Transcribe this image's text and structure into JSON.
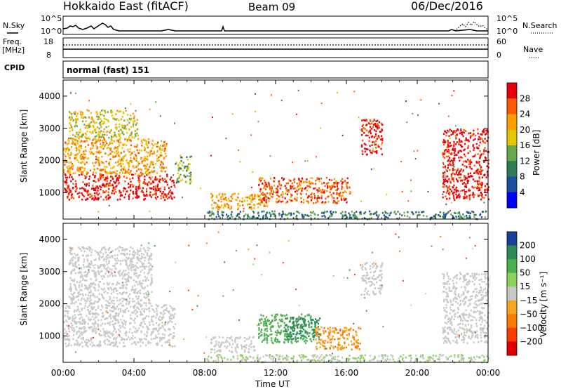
{
  "header": {
    "station": "Hokkaido East (fitACF)",
    "beam": "Beam 09",
    "date": "06/Dec/2016"
  },
  "noise_panel": {
    "left_label": "N.Sky",
    "left_ticks": [
      "10^5",
      "10^0"
    ],
    "right_ticks": [
      "10^5",
      "10^0"
    ],
    "right_label": "N.Search"
  },
  "freq_panel": {
    "left_label_1": "Freq.",
    "left_label_2": "[MHz]",
    "left_ticks": [
      "18",
      "8"
    ],
    "right_ticks": [
      "60",
      "0"
    ],
    "right_label": "Nave"
  },
  "cpid_panel": {
    "label": "CPID",
    "value": "normal (fast) 151"
  },
  "chart_data": [
    {
      "type": "heatmap",
      "name": "power",
      "ylabel": "Slant Range [km]",
      "yticks": [
        "4000",
        "3000",
        "2000",
        "1000"
      ],
      "ylim": [
        180,
        4500
      ],
      "colorbar_label": "Power [dB]",
      "colorbar_ticks": [
        "28",
        "24",
        "20",
        "16",
        "12",
        "8",
        "4"
      ],
      "colorbar_colors": [
        "#e8000b",
        "#ff5a00",
        "#ff9e00",
        "#e6c800",
        "#6aa84f",
        "#2e7d57",
        "#1c4fa0",
        "#0000ff"
      ],
      "regions": [
        {
          "t0": 0.0,
          "t1": 6.3,
          "r0": 800,
          "r1": 1600,
          "level": 28
        },
        {
          "t0": 0.0,
          "t1": 5.8,
          "r0": 1600,
          "r1": 2700,
          "level": 20
        },
        {
          "t0": 0.3,
          "t1": 4.2,
          "r0": 2700,
          "r1": 3600,
          "level": 16
        },
        {
          "t0": 6.3,
          "t1": 7.2,
          "r0": 1300,
          "r1": 2200,
          "level": 12
        },
        {
          "t0": 8.3,
          "t1": 11.5,
          "r0": 500,
          "r1": 1000,
          "level": 20
        },
        {
          "t0": 11.0,
          "t1": 16.2,
          "r0": 700,
          "r1": 1500,
          "level": 24
        },
        {
          "t0": 16.8,
          "t1": 18.0,
          "r0": 2200,
          "r1": 3300,
          "level": 28
        },
        {
          "t0": 21.4,
          "t1": 24.0,
          "r0": 800,
          "r1": 3000,
          "level": 28
        },
        {
          "t0": 8.0,
          "t1": 24.0,
          "r0": 200,
          "r1": 450,
          "level": 8
        }
      ]
    },
    {
      "type": "heatmap",
      "name": "velocity",
      "ylabel": "Slant Range [km]",
      "yticks": [
        "4000",
        "3000",
        "2000",
        "1000"
      ],
      "ylim": [
        180,
        4500
      ],
      "xlabel": "Time UT",
      "xticks": [
        "00:00",
        "04:00",
        "08:00",
        "12:00",
        "16:00",
        "20:00",
        "00:00"
      ],
      "xlim": [
        0,
        24
      ],
      "colorbar_label": "Velocity [m s⁻¹]",
      "colorbar_ticks": [
        "200",
        "100",
        "50",
        "15",
        "−15",
        "−50",
        "−100",
        "−200"
      ],
      "colorbar_colors": [
        "#1b3f9e",
        "#2e8b57",
        "#4caf50",
        "#8bd35a",
        "#c8c8c8",
        "#f5a623",
        "#ff7b00",
        "#ff3c00",
        "#e00000"
      ],
      "regions": [
        {
          "t0": 0.0,
          "t1": 6.3,
          "r0": 700,
          "r1": 2000,
          "v": 0
        },
        {
          "t0": 0.3,
          "t1": 5.0,
          "r0": 2000,
          "r1": 3800,
          "v": 0
        },
        {
          "t0": 8.3,
          "t1": 10.8,
          "r0": 500,
          "r1": 1000,
          "v": 0
        },
        {
          "t0": 11.0,
          "t1": 14.2,
          "r0": 800,
          "r1": 1700,
          "v": 50
        },
        {
          "t0": 12.5,
          "t1": 14.5,
          "r0": 900,
          "r1": 1600,
          "v": 100
        },
        {
          "t0": 14.2,
          "t1": 16.8,
          "r0": 600,
          "r1": 1300,
          "v": -50
        },
        {
          "t0": 16.8,
          "t1": 18.0,
          "r0": 2300,
          "r1": 3300,
          "v": 0
        },
        {
          "t0": 21.4,
          "t1": 24.0,
          "r0": 800,
          "r1": 3000,
          "v": 0
        },
        {
          "t0": 8.0,
          "t1": 24.0,
          "r0": 200,
          "r1": 450,
          "v": 15
        }
      ]
    }
  ]
}
